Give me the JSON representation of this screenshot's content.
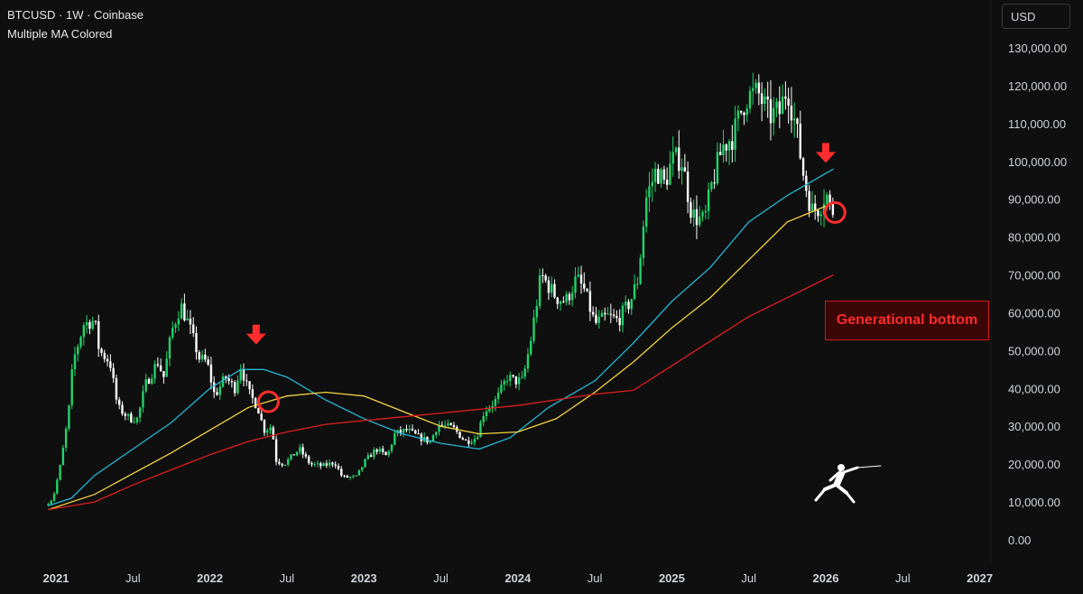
{
  "header": {
    "symbol_line": "BTCUSD · 1W · Coinbase",
    "indicator": "Multiple MA Colored"
  },
  "currency": "USD",
  "annotation": {
    "text": "Generational bottom"
  },
  "colors": {
    "background": "#0f0f0f",
    "up": "#22d36a",
    "down": "#ffffff",
    "ma_fast": "#26b7d6",
    "ma_mid": "#f5d442",
    "ma_slow": "#e01f1f",
    "marker": "#ff2d2d",
    "annotation": "#ff2b2b"
  },
  "icons": {
    "arrow": "down-arrow-icon",
    "circle": "circle-marker-icon",
    "figure": "fencer-figure-icon"
  },
  "chart_data": {
    "type": "line",
    "title": "BTCUSD · 1W · Coinbase",
    "ylim": [
      0,
      135000
    ],
    "xlim": [
      2020.95,
      2027.05
    ],
    "y_ticks": [
      {
        "v": 130000,
        "label": "130,000.00"
      },
      {
        "v": 120000,
        "label": "120,000.00"
      },
      {
        "v": 110000,
        "label": "110,000.00"
      },
      {
        "v": 100000,
        "label": "100,000.00"
      },
      {
        "v": 90000,
        "label": "90,000.00"
      },
      {
        "v": 80000,
        "label": "80,000.00"
      },
      {
        "v": 70000,
        "label": "70,000.00"
      },
      {
        "v": 60000,
        "label": "60,000.00"
      },
      {
        "v": 50000,
        "label": "50,000.00"
      },
      {
        "v": 40000,
        "label": "40,000.00"
      },
      {
        "v": 30000,
        "label": "30,000.00"
      },
      {
        "v": 20000,
        "label": "20,000.00"
      },
      {
        "v": 10000,
        "label": "10,000.00"
      },
      {
        "v": 0,
        "label": "0.00"
      }
    ],
    "x_ticks": [
      {
        "t": 2021.0,
        "label": "2021",
        "bold": true
      },
      {
        "t": 2021.5,
        "label": "Jul",
        "bold": false
      },
      {
        "t": 2022.0,
        "label": "2022",
        "bold": true
      },
      {
        "t": 2022.5,
        "label": "Jul",
        "bold": false
      },
      {
        "t": 2023.0,
        "label": "2023",
        "bold": true
      },
      {
        "t": 2023.5,
        "label": "Jul",
        "bold": false
      },
      {
        "t": 2024.0,
        "label": "2024",
        "bold": true
      },
      {
        "t": 2024.5,
        "label": "Jul",
        "bold": false
      },
      {
        "t": 2025.0,
        "label": "2025",
        "bold": true
      },
      {
        "t": 2025.5,
        "label": "Jul",
        "bold": false
      },
      {
        "t": 2026.0,
        "label": "2026",
        "bold": true
      },
      {
        "t": 2026.5,
        "label": "Jul",
        "bold": false
      },
      {
        "t": 2027.0,
        "label": "2027",
        "bold": true
      }
    ],
    "price_path": [
      [
        2020.95,
        9000
      ],
      [
        2021.0,
        11000
      ],
      [
        2021.05,
        20000
      ],
      [
        2021.1,
        33000
      ],
      [
        2021.13,
        47000
      ],
      [
        2021.2,
        57000
      ],
      [
        2021.27,
        58000
      ],
      [
        2021.3,
        50000
      ],
      [
        2021.37,
        47000
      ],
      [
        2021.42,
        35000
      ],
      [
        2021.5,
        32000
      ],
      [
        2021.55,
        32000
      ],
      [
        2021.6,
        41000
      ],
      [
        2021.68,
        47000
      ],
      [
        2021.72,
        43000
      ],
      [
        2021.77,
        55000
      ],
      [
        2021.83,
        62000
      ],
      [
        2021.88,
        57000
      ],
      [
        2021.95,
        48000
      ],
      [
        2022.0,
        47000
      ],
      [
        2022.05,
        38000
      ],
      [
        2022.12,
        43000
      ],
      [
        2022.18,
        40000
      ],
      [
        2022.22,
        46000
      ],
      [
        2022.27,
        39000
      ],
      [
        2022.33,
        35000
      ],
      [
        2022.37,
        29000
      ],
      [
        2022.42,
        30000
      ],
      [
        2022.45,
        21000
      ],
      [
        2022.5,
        20000
      ],
      [
        2022.6,
        24000
      ],
      [
        2022.67,
        20000
      ],
      [
        2022.75,
        19500
      ],
      [
        2022.83,
        20500
      ],
      [
        2022.88,
        16500
      ],
      [
        2022.97,
        16600
      ],
      [
        2023.03,
        21000
      ],
      [
        2023.1,
        24000
      ],
      [
        2023.17,
        22000
      ],
      [
        2023.22,
        28000
      ],
      [
        2023.3,
        29000
      ],
      [
        2023.38,
        27000
      ],
      [
        2023.45,
        26000
      ],
      [
        2023.5,
        30500
      ],
      [
        2023.6,
        29500
      ],
      [
        2023.68,
        26000
      ],
      [
        2023.75,
        27000
      ],
      [
        2023.8,
        34000
      ],
      [
        2023.88,
        37000
      ],
      [
        2023.95,
        43000
      ],
      [
        2024.0,
        42000
      ],
      [
        2024.05,
        42000
      ],
      [
        2024.1,
        52000
      ],
      [
        2024.17,
        70000
      ],
      [
        2024.27,
        64000
      ],
      [
        2024.33,
        63000
      ],
      [
        2024.4,
        69000
      ],
      [
        2024.45,
        66000
      ],
      [
        2024.52,
        57000
      ],
      [
        2024.6,
        59000
      ],
      [
        2024.67,
        58000
      ],
      [
        2024.75,
        63000
      ],
      [
        2024.8,
        69000
      ],
      [
        2024.85,
        90000
      ],
      [
        2024.92,
        98000
      ],
      [
        2024.97,
        94000
      ],
      [
        2025.02,
        100000
      ],
      [
        2025.08,
        101000
      ],
      [
        2025.15,
        86000
      ],
      [
        2025.23,
        84000
      ],
      [
        2025.28,
        94000
      ],
      [
        2025.35,
        104000
      ],
      [
        2025.42,
        107000
      ],
      [
        2025.5,
        117000
      ],
      [
        2025.58,
        118000
      ],
      [
        2025.65,
        112000
      ],
      [
        2025.72,
        113000
      ],
      [
        2025.77,
        120000
      ],
      [
        2025.83,
        108000
      ],
      [
        2025.88,
        95000
      ],
      [
        2025.93,
        87000
      ],
      [
        2025.98,
        88000
      ],
      [
        2026.02,
        92000
      ],
      [
        2026.05,
        87000
      ]
    ],
    "series": [
      {
        "name": "",
        "color": "#26b7d6",
        "points": [
          [
            2020.95,
            9000
          ],
          [
            2021.1,
            11000
          ],
          [
            2021.25,
            17000
          ],
          [
            2021.5,
            24000
          ],
          [
            2021.75,
            31000
          ],
          [
            2022.0,
            40000
          ],
          [
            2022.2,
            45000
          ],
          [
            2022.35,
            45000
          ],
          [
            2022.5,
            43000
          ],
          [
            2022.75,
            37000
          ],
          [
            2023.0,
            32000
          ],
          [
            2023.25,
            28000
          ],
          [
            2023.5,
            25500
          ],
          [
            2023.75,
            24000
          ],
          [
            2023.95,
            27000
          ],
          [
            2024.2,
            35000
          ],
          [
            2024.5,
            42000
          ],
          [
            2024.75,
            52000
          ],
          [
            2025.0,
            63000
          ],
          [
            2025.25,
            72000
          ],
          [
            2025.5,
            84000
          ],
          [
            2025.75,
            91000
          ],
          [
            2026.05,
            98000
          ]
        ]
      },
      {
        "name": "",
        "color": "#f5d442",
        "points": [
          [
            2020.95,
            8000
          ],
          [
            2021.25,
            12000
          ],
          [
            2021.5,
            17500
          ],
          [
            2021.75,
            23000
          ],
          [
            2022.0,
            29000
          ],
          [
            2022.25,
            35000
          ],
          [
            2022.5,
            38000
          ],
          [
            2022.75,
            39000
          ],
          [
            2023.0,
            38000
          ],
          [
            2023.25,
            34000
          ],
          [
            2023.5,
            30000
          ],
          [
            2023.75,
            28000
          ],
          [
            2024.0,
            28500
          ],
          [
            2024.25,
            32000
          ],
          [
            2024.5,
            39000
          ],
          [
            2024.75,
            47000
          ],
          [
            2025.0,
            56000
          ],
          [
            2025.25,
            64000
          ],
          [
            2025.5,
            74000
          ],
          [
            2025.75,
            84000
          ],
          [
            2026.05,
            89000
          ]
        ]
      },
      {
        "name": "",
        "color": "#e01f1f",
        "points": [
          [
            2020.95,
            8000
          ],
          [
            2021.25,
            10000
          ],
          [
            2021.5,
            14500
          ],
          [
            2021.75,
            18500
          ],
          [
            2022.0,
            22500
          ],
          [
            2022.25,
            26000
          ],
          [
            2022.5,
            28500
          ],
          [
            2022.75,
            30500
          ],
          [
            2023.0,
            31500
          ],
          [
            2023.25,
            32500
          ],
          [
            2023.5,
            33500
          ],
          [
            2023.75,
            34500
          ],
          [
            2024.0,
            35500
          ],
          [
            2024.25,
            37000
          ],
          [
            2024.5,
            38500
          ],
          [
            2024.75,
            39500
          ],
          [
            2025.0,
            46000
          ],
          [
            2025.25,
            52500
          ],
          [
            2025.5,
            59000
          ],
          [
            2025.75,
            64000
          ],
          [
            2026.05,
            70000
          ]
        ]
      }
    ],
    "markers": [
      {
        "type": "arrow",
        "t": 2022.3,
        "v": 54000
      },
      {
        "type": "circle",
        "t": 2022.38,
        "v": 36500
      },
      {
        "type": "arrow",
        "t": 2026.0,
        "v": 102000
      },
      {
        "type": "circle",
        "t": 2026.06,
        "v": 86500
      }
    ]
  }
}
